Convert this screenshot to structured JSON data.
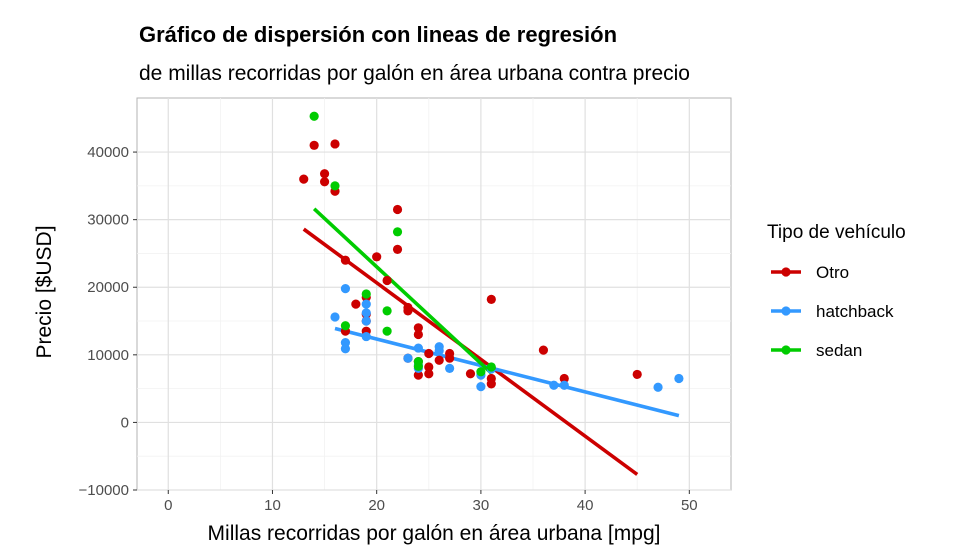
{
  "chart_data": {
    "type": "scatter",
    "title": "Gráfico de dispersión con lineas de regresión",
    "subtitle": "de millas recorridas por galón en área urbana contra precio",
    "xlabel": "Millas recorridas por galón en área urbana [mpg]",
    "ylabel": "Precio [$USD]",
    "xlim": [
      -3,
      54
    ],
    "ylim": [
      -10000,
      48000
    ],
    "xticks": [
      0,
      10,
      20,
      30,
      40,
      50
    ],
    "yticks": [
      -10000,
      0,
      10000,
      20000,
      30000,
      40000
    ],
    "xtick_labels": [
      "0",
      "10",
      "20",
      "30",
      "40",
      "50"
    ],
    "ytick_labels": [
      "−10000",
      "0",
      "10000",
      "20000",
      "30000",
      "40000"
    ],
    "grid": true,
    "legend": {
      "title": "Tipo de vehículo",
      "position": "right"
    },
    "series": [
      {
        "name": "Otro",
        "color": "#CC0000",
        "points": [
          [
            13,
            36000
          ],
          [
            14,
            41000
          ],
          [
            15,
            36800
          ],
          [
            15,
            35600
          ],
          [
            16,
            34200
          ],
          [
            16,
            41200
          ],
          [
            17,
            24000
          ],
          [
            17,
            13500
          ],
          [
            18,
            17500
          ],
          [
            19,
            18500
          ],
          [
            19,
            16000
          ],
          [
            19,
            15000
          ],
          [
            19,
            13500
          ],
          [
            20,
            24500
          ],
          [
            21,
            21000
          ],
          [
            22,
            25600
          ],
          [
            22,
            31500
          ],
          [
            23,
            17000
          ],
          [
            23,
            16500
          ],
          [
            23,
            9500
          ],
          [
            24,
            14000
          ],
          [
            24,
            13000
          ],
          [
            24,
            9000
          ],
          [
            24,
            7000
          ],
          [
            25,
            10200
          ],
          [
            25,
            8200
          ],
          [
            25,
            7200
          ],
          [
            26,
            9200
          ],
          [
            27,
            10200
          ],
          [
            27,
            9500
          ],
          [
            29,
            7200
          ],
          [
            31,
            8000
          ],
          [
            31,
            6500
          ],
          [
            31,
            5700
          ],
          [
            31,
            18200
          ],
          [
            36,
            10700
          ],
          [
            38,
            6500
          ],
          [
            45,
            7100
          ]
        ],
        "regression": [
          [
            13,
            28600
          ],
          [
            45,
            -7700
          ]
        ]
      },
      {
        "name": "hatchback",
        "color": "#3399FF",
        "points": [
          [
            16,
            15600
          ],
          [
            17,
            19800
          ],
          [
            17,
            11800
          ],
          [
            17,
            10900
          ],
          [
            19,
            17500
          ],
          [
            19,
            16200
          ],
          [
            19,
            15000
          ],
          [
            19,
            12700
          ],
          [
            23,
            9500
          ],
          [
            24,
            11000
          ],
          [
            24,
            8500
          ],
          [
            24,
            8000
          ],
          [
            26,
            11200
          ],
          [
            26,
            10600
          ],
          [
            27,
            8000
          ],
          [
            30,
            7000
          ],
          [
            30,
            5300
          ],
          [
            31,
            7900
          ],
          [
            37,
            5500
          ],
          [
            38,
            5500
          ],
          [
            47,
            5200
          ],
          [
            49,
            6500
          ]
        ],
        "regression": [
          [
            16,
            13900
          ],
          [
            49,
            1000
          ]
        ]
      },
      {
        "name": "sedan",
        "color": "#00CC00",
        "points": [
          [
            14,
            45300
          ],
          [
            16,
            35000
          ],
          [
            17,
            14300
          ],
          [
            19,
            19000
          ],
          [
            21,
            16500
          ],
          [
            21,
            13500
          ],
          [
            22,
            28200
          ],
          [
            24,
            9000
          ],
          [
            24,
            8300
          ],
          [
            30,
            7500
          ],
          [
            31,
            8200
          ]
        ],
        "regression": [
          [
            14,
            31600
          ],
          [
            31,
            7300
          ]
        ]
      }
    ]
  }
}
